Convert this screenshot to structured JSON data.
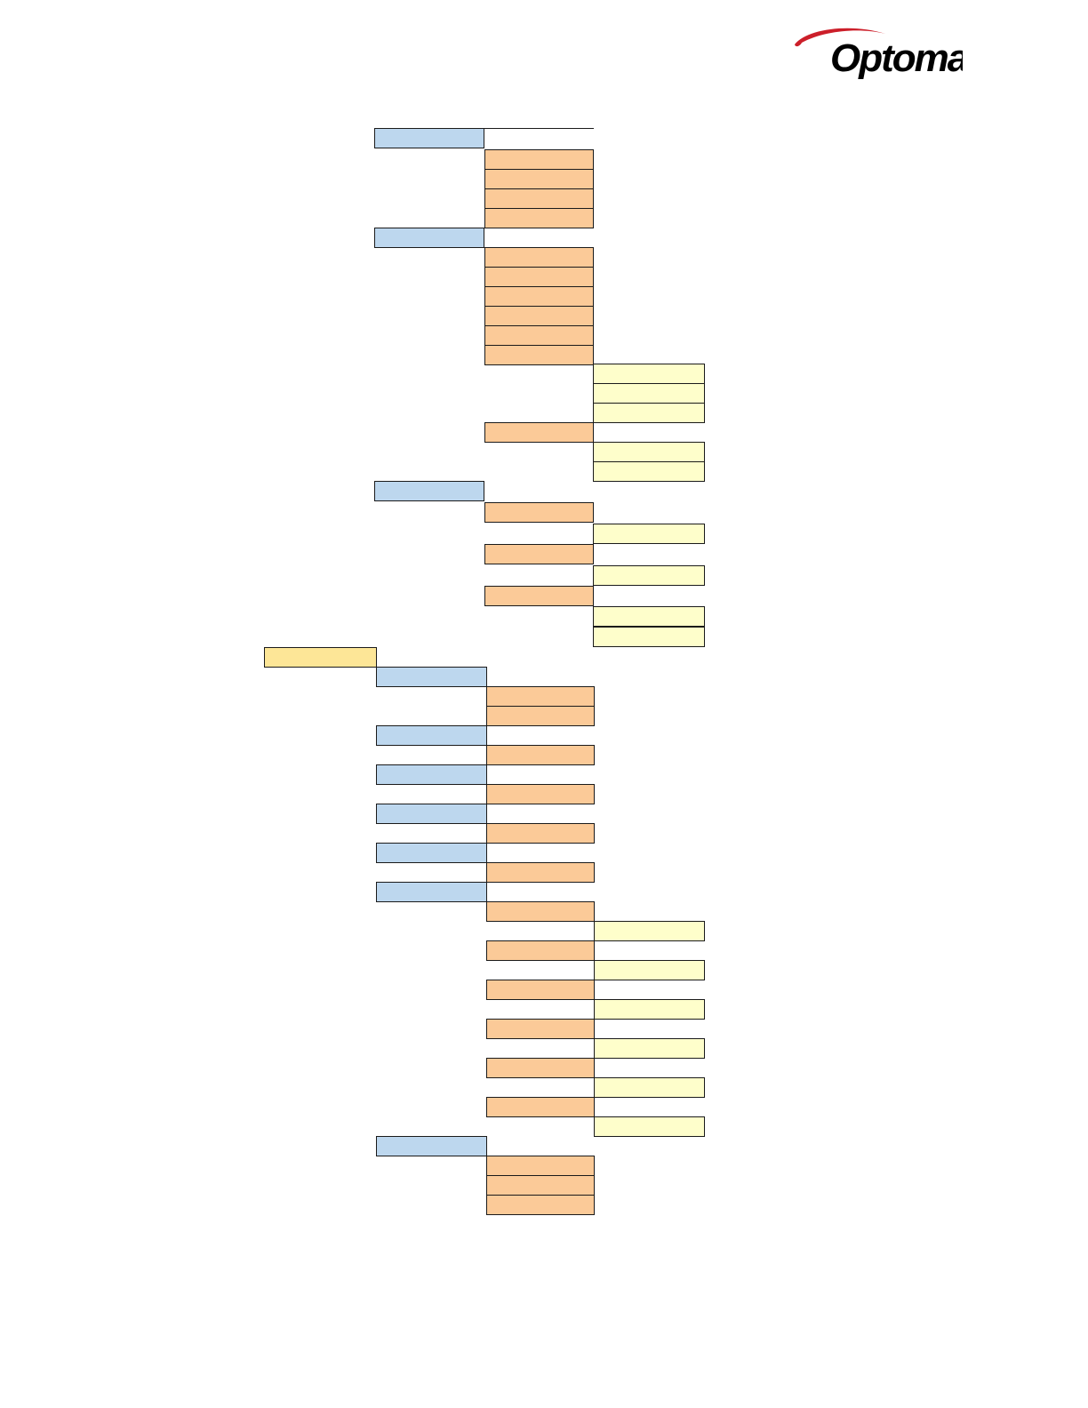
{
  "header": {
    "brand_name": "Optoma",
    "brand_color": "#000000",
    "swoosh_color": "#cc1f2a"
  },
  "colors": {
    "root": "#fde697",
    "level1": "#bdd7ee",
    "level2": "#fbca98",
    "level3": "#fefecb",
    "border": "#1a1a1a"
  },
  "tree_text": []
}
